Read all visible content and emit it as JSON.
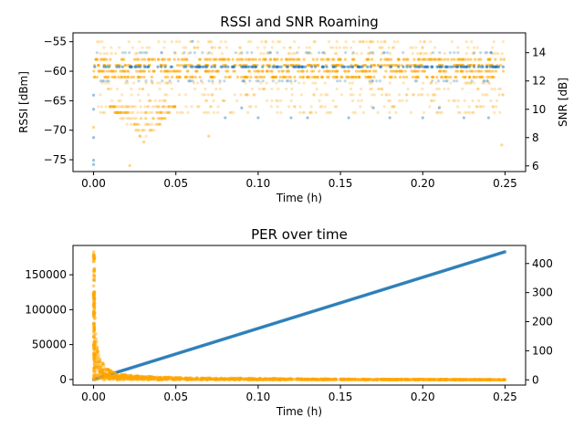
{
  "chart_data": [
    {
      "type": "scatter",
      "title": "RSSI and SNR Roaming",
      "xlabel": "Time (h)",
      "ylabel": "RSSI [dBm]",
      "y2label": "SNR [dB]",
      "xlim": [
        -0.0125,
        0.2625
      ],
      "ylim": [
        -77,
        -53.5
      ],
      "y2lim": [
        5.6,
        15.4
      ],
      "xticks": [
        0.0,
        0.05,
        0.1,
        0.15,
        0.2,
        0.25
      ],
      "xtick_labels": [
        "0.00",
        "0.05",
        "0.10",
        "0.15",
        "0.20",
        "0.25"
      ],
      "yticks": [
        -75,
        -70,
        -65,
        -60,
        -55
      ],
      "ytick_labels": [
        "−75",
        "−70",
        "−65",
        "−60",
        "−55"
      ],
      "y2ticks": [
        6,
        8,
        10,
        12,
        14
      ],
      "y2tick_labels": [
        "6",
        "8",
        "10",
        "12",
        "14"
      ],
      "grid": false,
      "series": [
        {
          "axis": "left",
          "color": "#FFA500",
          "x_range": [
            0,
            0.25
          ],
          "levels": [
            -55,
            -56,
            -57,
            -58,
            -59,
            -60,
            -61,
            -62,
            -63,
            -64,
            -65,
            -66,
            -67
          ],
          "dense_levels": [
            -58,
            -59,
            -60,
            -61
          ],
          "dip": {
            "x_range": [
              0.01,
              0.05
            ],
            "min": -72
          },
          "outliers": [
            {
              "x": 0.022,
              "y": -76
            },
            {
              "x": 0.07,
              "y": -71
            },
            {
              "x": 0.248,
              "y": -72.5
            },
            {
              "x": 0.0,
              "y": -69.5
            }
          ]
        },
        {
          "axis": "right",
          "color": "#1F77B4",
          "x_range": [
            0,
            0.25
          ],
          "levels": [
            14,
            13,
            12
          ],
          "dense_levels": [
            13
          ],
          "outliers": [
            {
              "x": 0.0,
              "y": 11
            },
            {
              "x": 0.0,
              "y": 10
            },
            {
              "x": 0.0,
              "y": 8
            },
            {
              "x": 0.0,
              "y": 6.1
            },
            {
              "x": 0.0,
              "y": 6.4
            },
            {
              "x": 0.08,
              "y": 9.4
            },
            {
              "x": 0.1,
              "y": 9.4
            },
            {
              "x": 0.12,
              "y": 9.4
            },
            {
              "x": 0.13,
              "y": 9.4
            },
            {
              "x": 0.155,
              "y": 9.4
            },
            {
              "x": 0.18,
              "y": 9.4
            },
            {
              "x": 0.2,
              "y": 9.4
            },
            {
              "x": 0.225,
              "y": 9.4
            },
            {
              "x": 0.24,
              "y": 9.4
            },
            {
              "x": 0.09,
              "y": 10.1
            },
            {
              "x": 0.17,
              "y": 10.1
            },
            {
              "x": 0.21,
              "y": 10.1
            },
            {
              "x": 0.06,
              "y": 14.8
            }
          ]
        }
      ]
    },
    {
      "type": "scatter",
      "title": "PER over time",
      "xlabel": "Time (h)",
      "ylabel": "",
      "y2label": "",
      "xlim": [
        -0.0125,
        0.2625
      ],
      "ylim": [
        -8000,
        192000
      ],
      "y2lim": [
        -18,
        462
      ],
      "xticks": [
        0.0,
        0.05,
        0.1,
        0.15,
        0.2,
        0.25
      ],
      "xtick_labels": [
        "0.00",
        "0.05",
        "0.10",
        "0.15",
        "0.20",
        "0.25"
      ],
      "yticks": [
        0,
        50000,
        100000,
        150000
      ],
      "ytick_labels": [
        "0",
        "50000",
        "100000",
        "150000"
      ],
      "y2ticks": [
        0,
        100,
        200,
        300,
        400
      ],
      "y2tick_labels": [
        "0",
        "100",
        "200",
        "300",
        "400"
      ],
      "grid": false,
      "series": [
        {
          "axis": "left",
          "color": "#1F77B4",
          "kind": "linear",
          "x": [
            0,
            0.25
          ],
          "y": [
            0,
            183000
          ]
        },
        {
          "axis": "right",
          "color": "#FFA500",
          "kind": "decay",
          "x_range": [
            0,
            0.25
          ],
          "y_max": 440,
          "points": [
            {
              "x": 0.0,
              "y": 440
            },
            {
              "x": 0.001,
              "y": 220
            },
            {
              "x": 0.002,
              "y": 130
            },
            {
              "x": 0.004,
              "y": 70
            },
            {
              "x": 0.008,
              "y": 40
            },
            {
              "x": 0.015,
              "y": 20
            },
            {
              "x": 0.03,
              "y": 12
            },
            {
              "x": 0.06,
              "y": 7
            },
            {
              "x": 0.1,
              "y": 5
            },
            {
              "x": 0.15,
              "y": 3
            },
            {
              "x": 0.2,
              "y": 2
            },
            {
              "x": 0.25,
              "y": 1
            }
          ]
        }
      ]
    }
  ]
}
